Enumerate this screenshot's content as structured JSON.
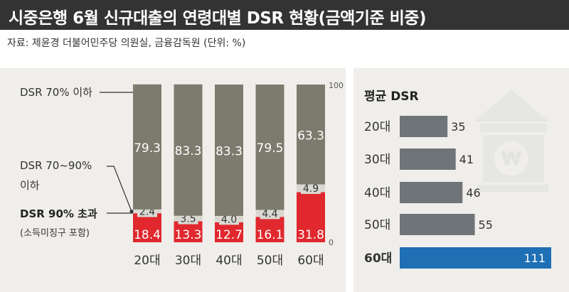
{
  "title": "시중은행 6월 신규대출의 연령대별 DSR 현황(금액기준 비중)",
  "source": "자료: 제윤경 더불어민주당 의원실, 금융감독원 (단위: %)",
  "colors": {
    "gray_segment": "#7c7b6e",
    "light_segment": "#d9d9d2",
    "red_segment": "#e0282e",
    "side_bar": "#6e7478",
    "highlight_bar": "#1f6fb5",
    "panel_bg": "#f0eeeb",
    "title_bg": "#333333"
  },
  "icons": [
    "bank-icon"
  ],
  "chart_data": [
    {
      "type": "bar",
      "stacked": true,
      "categories": [
        "20대",
        "30대",
        "40대",
        "50대",
        "60대"
      ],
      "series": [
        {
          "name": "DSR 90% 초과",
          "sublabel": "(소득미징구 포함)",
          "values": [
            18.4,
            13.3,
            12.7,
            16.1,
            31.8
          ]
        },
        {
          "name": "DSR 70~90%",
          "sublabel": "이하",
          "values": [
            2.4,
            3.5,
            4.0,
            4.4,
            4.9
          ]
        },
        {
          "name": "DSR 70% 이하",
          "values": [
            79.3,
            83.3,
            83.3,
            79.5,
            63.3
          ]
        }
      ],
      "ylim": [
        0,
        100
      ],
      "yticks": [
        "0",
        "100"
      ],
      "legend": "left"
    },
    {
      "type": "bar",
      "orientation": "horizontal",
      "title": "평균 DSR",
      "categories": [
        "20대",
        "30대",
        "40대",
        "50대",
        "60대"
      ],
      "values": [
        35,
        41,
        46,
        55,
        111
      ],
      "highlight_index": 4,
      "xlim": [
        0,
        111
      ]
    }
  ]
}
